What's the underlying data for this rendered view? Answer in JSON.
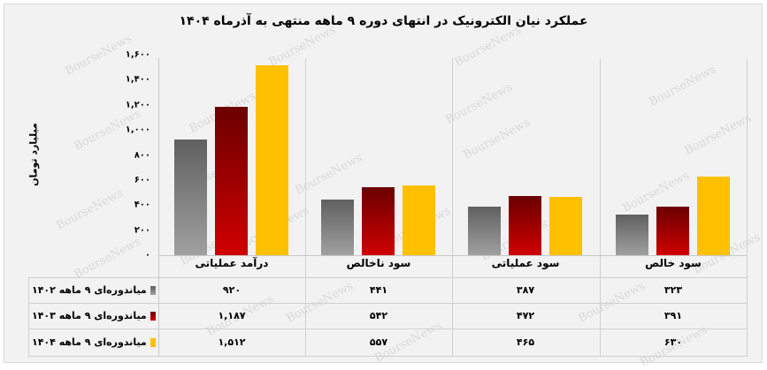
{
  "title": "عملکرد نیان الکترونیک در انتهای دوره ۹ ماهه منتهی به آذرماه ۱۴۰۴",
  "y_axis": {
    "label": "میلیارد تومان",
    "ticks": [
      "۰",
      "۲۰۰",
      "۴۰۰",
      "۶۰۰",
      "۸۰۰",
      "۱,۰۰۰",
      "۱,۲۰۰",
      "۱,۴۰۰",
      "۱,۶۰۰"
    ]
  },
  "categories": [
    "درآمد عملیاتی",
    "سود ناخالص",
    "سود عملیاتی",
    "سود خالص"
  ],
  "legend": [
    {
      "label": "میاندوره‌ای ۹ ماهه ۱۴۰۲",
      "color": "#8c8c8c"
    },
    {
      "label": "میاندوره‌ای ۹ ماهه ۱۴۰۳",
      "color": "#a00000"
    },
    {
      "label": "میاندوره‌ای ۹ ماهه ۱۴۰۴",
      "color": "#ffc000"
    }
  ],
  "table": [
    [
      "۹۲۰",
      "۴۴۱",
      "۳۸۷",
      "۳۲۳"
    ],
    [
      "۱,۱۸۷",
      "۵۴۲",
      "۴۷۲",
      "۳۹۱"
    ],
    [
      "۱,۵۱۲",
      "۵۵۷",
      "۴۶۵",
      "۶۳۰"
    ]
  ],
  "watermark": "BourseNews",
  "chart_data": {
    "type": "bar",
    "title": "عملکرد نیان الکترونیک در انتهای دوره ۹ ماهه منتهی به آذرماه ۱۴۰۴",
    "xlabel": "",
    "ylabel": "میلیارد تومان",
    "ylim": [
      0,
      1600
    ],
    "yticks": [
      0,
      200,
      400,
      600,
      800,
      1000,
      1200,
      1400,
      1600
    ],
    "grid": false,
    "legend_position": "bottom-table",
    "categories": [
      "درآمد عملیاتی",
      "سود ناخالص",
      "سود عملیاتی",
      "سود خالص"
    ],
    "series": [
      {
        "name": "میاندوره‌ای ۹ ماهه ۱۴۰۲",
        "color": "#8c8c8c",
        "values": [
          920,
          441,
          387,
          323
        ]
      },
      {
        "name": "میاندوره‌ای ۹ ماهه ۱۴۰۳",
        "color": "#a00000",
        "values": [
          1187,
          542,
          472,
          391
        ]
      },
      {
        "name": "میاندوره‌ای ۹ ماهه ۱۴۰۴",
        "color": "#ffc000",
        "values": [
          1512,
          557,
          465,
          630
        ]
      }
    ]
  }
}
